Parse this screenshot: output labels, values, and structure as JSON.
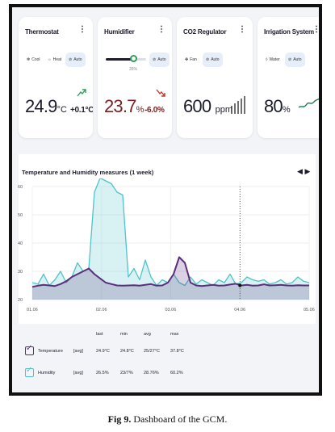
{
  "cards": {
    "thermostat": {
      "title": "Thermostat",
      "modes": [
        "Cool",
        "Heat",
        "Auto"
      ],
      "value": "24.9",
      "unit": "°C",
      "delta": "+0.1°C"
    },
    "humidifier": {
      "title": "Humidifier",
      "level_label": "26%",
      "level": 26,
      "modes": [
        "Auto"
      ],
      "value": "23.7",
      "unit": "%",
      "delta": "-6.0%"
    },
    "co2": {
      "title": "CO2 Regulator",
      "modes": [
        "Fan",
        "Auto"
      ],
      "value": "600",
      "unit": "ppm"
    },
    "irrigation": {
      "title": "Irrigation System",
      "modes": [
        "Water",
        "Auto"
      ],
      "value": "80",
      "unit": "%"
    }
  },
  "chart_data": {
    "type": "line",
    "title": "Temperature and Humidity measures (1 week)",
    "yticks": [
      "60",
      "50",
      "40",
      "30",
      "20"
    ],
    "xticks": [
      "01.06",
      "02.06",
      "03.06",
      "04.06",
      "05.06"
    ],
    "ylim": [
      20,
      60
    ],
    "series": [
      {
        "name": "Humidity",
        "color": "#4fc3c7",
        "values": [
          26,
          25.5,
          29,
          25,
          27,
          30,
          26,
          28,
          33,
          30,
          31,
          58,
          63,
          62,
          61,
          58,
          57,
          28,
          31,
          27,
          34,
          28,
          25,
          27,
          26,
          29,
          26,
          25,
          28,
          25.5,
          27,
          26,
          25,
          27,
          26,
          29,
          25.5,
          26,
          28,
          27,
          26.5,
          27,
          25.5,
          26,
          27,
          25.5,
          26,
          28,
          26.5,
          26
        ]
      },
      {
        "name": "Temperature",
        "color": "#5b2e7d",
        "values": [
          24.5,
          24.9,
          25.2,
          25,
          24.8,
          25.5,
          26.5,
          28,
          29,
          30,
          31,
          29,
          27.5,
          26,
          25.5,
          25,
          24.9,
          25,
          25.1,
          24.9,
          25.2,
          25.5,
          24.9,
          25,
          26,
          29,
          35,
          33,
          26,
          25,
          24.8,
          25,
          25.2,
          24.9,
          25,
          25.3,
          25.6,
          25,
          25.2,
          24.9,
          25,
          25.4,
          25,
          25.1,
          25.2,
          25,
          24.9,
          25.1,
          25,
          25
        ]
      }
    ]
  },
  "stats": {
    "headers": [
      "last",
      "min",
      "avg",
      "max"
    ],
    "rows": [
      {
        "name": "Temperature",
        "tag": "[avg]",
        "last": "24.9°C",
        "min": "24.8°C",
        "avg": "25/27°C",
        "max": "37.8°C",
        "color": "#5b2e7d"
      },
      {
        "name": "Humidity",
        "tag": "[avg]",
        "last": "26.5%",
        "min": "23/7%",
        "avg": "28.76%",
        "max": "60.2%",
        "color": "#4fc3c7"
      }
    ]
  },
  "caption": {
    "label": "Fig 9.",
    "text": "Dashboard of the GCM."
  }
}
